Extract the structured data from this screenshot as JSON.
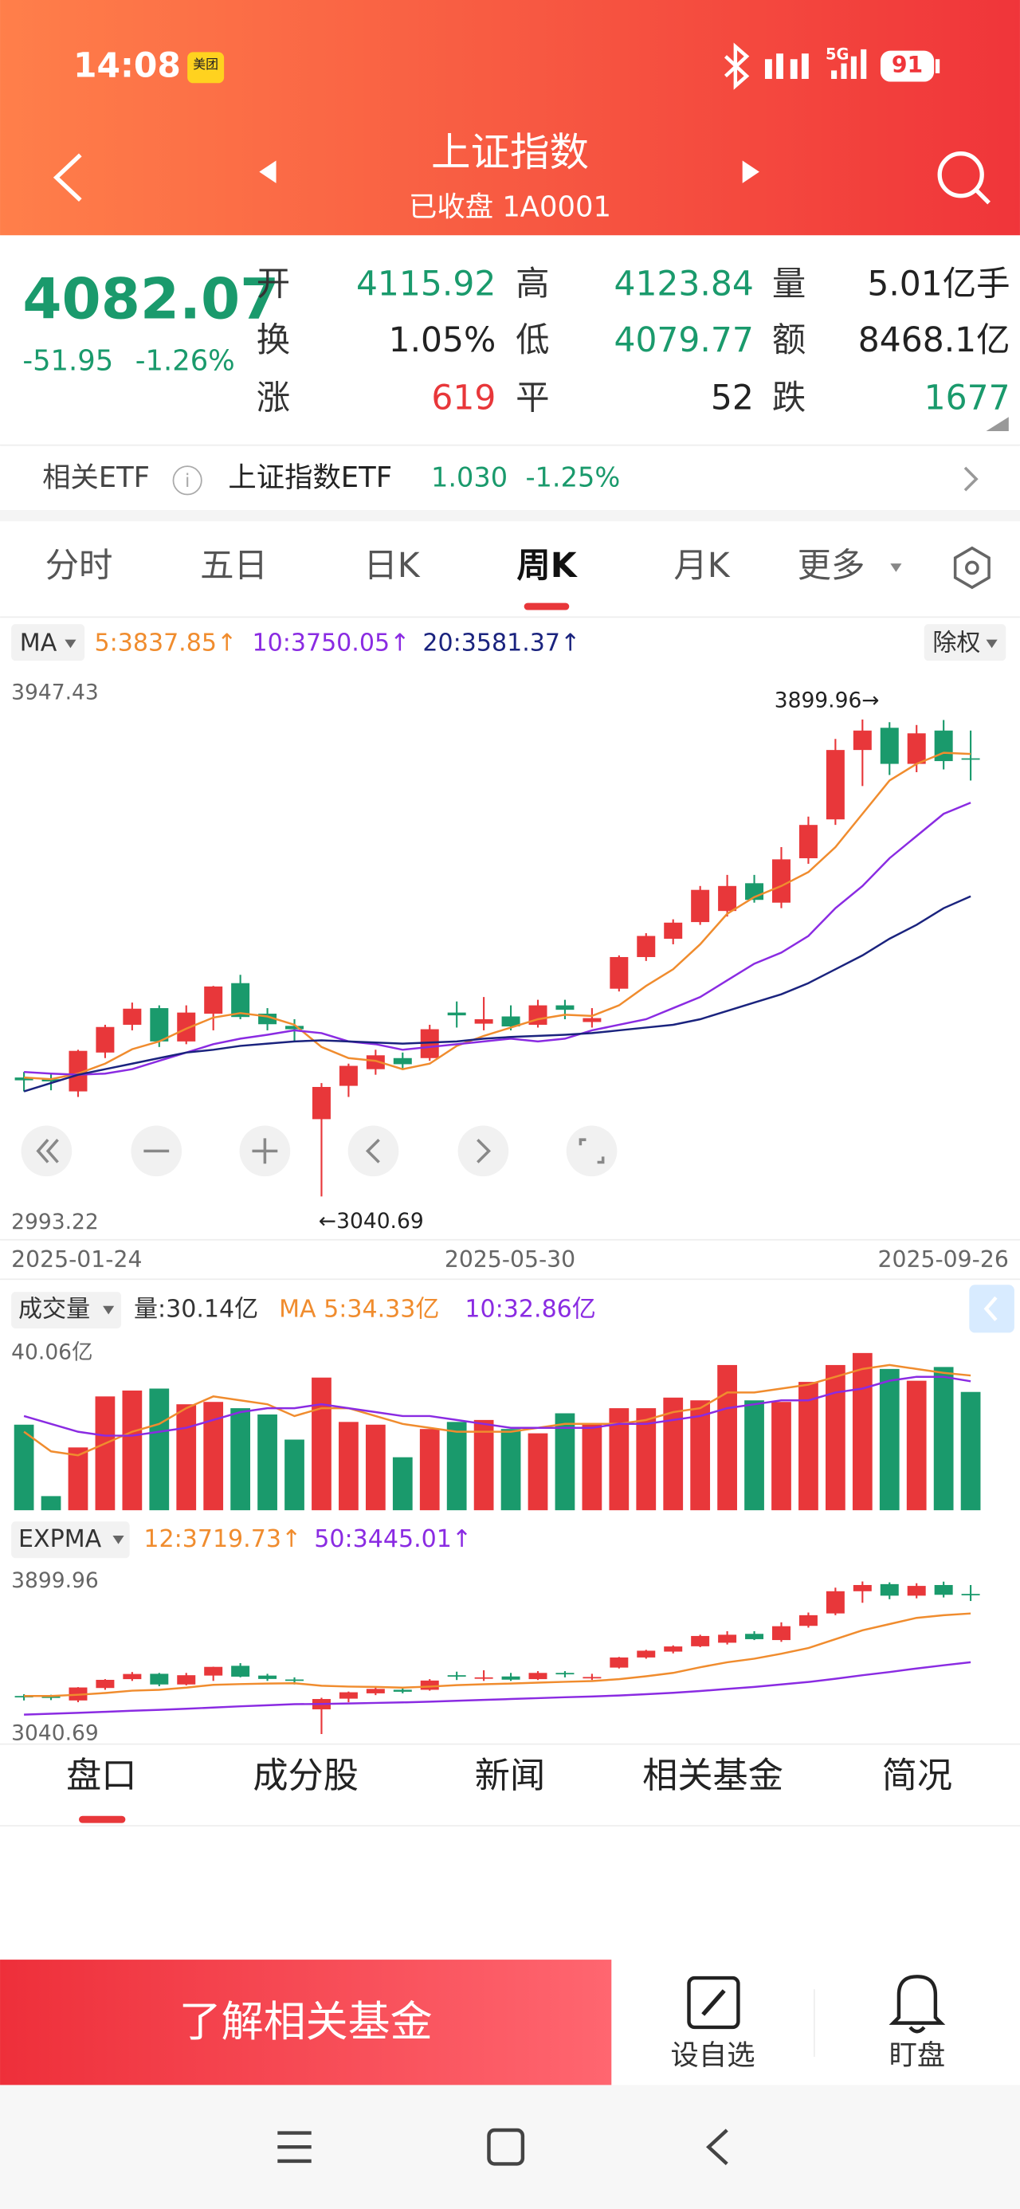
{
  "status_bar": {
    "time": "14:08",
    "app_badge": "美团",
    "network": "5G",
    "battery": "91"
  },
  "header": {
    "title": "上证指数",
    "subtitle": "已收盘 1A0001"
  },
  "quote": {
    "price": "4082.07",
    "change": "-51.95",
    "change_pct": "-1.26%",
    "color": "#1a9a6c",
    "stats": [
      [
        {
          "label": "开",
          "value": "4115.92",
          "color": "#1a9a6c"
        },
        {
          "label": "高",
          "value": "4123.84",
          "color": "#1a9a6c"
        },
        {
          "label": "量",
          "value": "5.01亿手",
          "color": "#222222"
        }
      ],
      [
        {
          "label": "换",
          "value": "1.05%",
          "color": "#222222"
        },
        {
          "label": "低",
          "value": "4079.77",
          "color": "#1a9a6c"
        },
        {
          "label": "额",
          "value": "8468.1亿",
          "color": "#222222"
        }
      ],
      [
        {
          "label": "涨",
          "value": "619",
          "color": "#e8373a"
        },
        {
          "label": "平",
          "value": "52",
          "color": "#222222"
        },
        {
          "label": "跌",
          "value": "1677",
          "color": "#1a9a6c"
        }
      ]
    ]
  },
  "etf": {
    "label": "相关ETF",
    "name": "上证指数ETF",
    "price": "1.030",
    "change_pct": "-1.25%",
    "color": "#1a9a6c"
  },
  "period_tabs": {
    "items": [
      "分时",
      "五日",
      "日K",
      "周K",
      "月K",
      "更多"
    ],
    "active": 3
  },
  "kline": {
    "type": "candlestick",
    "indicator": "MA",
    "adjust": "除权",
    "up_color": "#e8373a",
    "down_color": "#1a9a6c",
    "ylim": [
      2993.22,
      3947.43
    ],
    "yticks": [
      2993.22,
      3947.43
    ],
    "high_label": "3899.96→",
    "high_index": 31,
    "low_label": "←3040.69",
    "low_index": 11,
    "x_labels": [
      "2025-01-24",
      "2025-05-30",
      "2025-09-26"
    ],
    "open": [
      3255,
      3252,
      3230,
      3300,
      3350,
      3380,
      3320,
      3370,
      3425,
      3370,
      3348,
      3180,
      3240,
      3270,
      3290,
      3290,
      3372,
      3352,
      3365,
      3350,
      3385,
      3355,
      3415,
      3472,
      3505,
      3535,
      3555,
      3605,
      3570,
      3650,
      3720,
      3845,
      3885,
      3820,
      3880,
      3830
    ],
    "high": [
      3265,
      3262,
      3305,
      3350,
      3390,
      3385,
      3385,
      3420,
      3440,
      3380,
      3360,
      3245,
      3280,
      3305,
      3300,
      3350,
      3392,
      3400,
      3385,
      3395,
      3395,
      3380,
      3475,
      3515,
      3540,
      3600,
      3620,
      3620,
      3670,
      3725,
      3865,
      3899.96,
      3895,
      3890,
      3899,
      3880
    ],
    "low": [
      3230,
      3232,
      3220,
      3290,
      3340,
      3310,
      3315,
      3340,
      3360,
      3340,
      3320,
      3040.69,
      3220,
      3260,
      3270,
      3285,
      3345,
      3340,
      3340,
      3345,
      3360,
      3345,
      3410,
      3465,
      3495,
      3530,
      3545,
      3570,
      3560,
      3640,
      3710,
      3780,
      3800,
      3805,
      3810,
      3790
    ],
    "close": [
      3250,
      3248,
      3303,
      3346,
      3379,
      3320,
      3372,
      3419,
      3364,
      3351,
      3342,
      3238,
      3276,
      3295,
      3279,
      3342,
      3367,
      3360,
      3347,
      3385,
      3377,
      3362,
      3472,
      3510,
      3534,
      3593,
      3600,
      3575,
      3648,
      3710,
      3845,
      3880,
      3820,
      3875,
      3825,
      3828
    ],
    "series": [
      {
        "name": "5:3837.85↑",
        "color": "#f08c2e",
        "values": [
          3255,
          3252,
          3262,
          3280,
          3306,
          3320,
          3343,
          3363,
          3371,
          3365,
          3350,
          3310,
          3290,
          3285,
          3270,
          3280,
          3312,
          3330,
          3345,
          3360,
          3368,
          3366,
          3385,
          3420,
          3450,
          3495,
          3550,
          3580,
          3600,
          3625,
          3670,
          3730,
          3790,
          3820,
          3840,
          3837.85
        ]
      },
      {
        "name": "10:3750.05↑",
        "color": "#8a2be2",
        "values": [
          3265,
          3262,
          3260,
          3262,
          3270,
          3285,
          3300,
          3315,
          3325,
          3332,
          3340,
          3335,
          3320,
          3315,
          3305,
          3310,
          3315,
          3320,
          3325,
          3320,
          3325,
          3340,
          3350,
          3360,
          3380,
          3400,
          3430,
          3460,
          3480,
          3510,
          3560,
          3600,
          3650,
          3690,
          3730,
          3750.05
        ]
      },
      {
        "name": "20:3581.37↑",
        "color": "#1a237e",
        "values": [
          3230,
          3245,
          3260,
          3270,
          3280,
          3290,
          3300,
          3305,
          3312,
          3316,
          3320,
          3322,
          3320,
          3318,
          3316,
          3318,
          3320,
          3325,
          3328,
          3330,
          3332,
          3335,
          3340,
          3345,
          3350,
          3360,
          3375,
          3390,
          3405,
          3425,
          3450,
          3475,
          3505,
          3530,
          3560,
          3581.37
        ]
      }
    ]
  },
  "volume": {
    "name": "成交量",
    "last": "量:30.14亿",
    "ylim": [
      0,
      42
    ],
    "yticks": [
      {
        "value": 40.06,
        "label": "40.06亿"
      }
    ],
    "values": [
      21.8,
      3.6,
      16,
      29,
      30.5,
      31,
      27,
      27.6,
      26,
      24.4,
      18,
      33.8,
      22.5,
      21.8,
      13.5,
      20.7,
      22.5,
      23,
      20.7,
      19.6,
      24.7,
      21.8,
      26,
      26,
      28.7,
      28,
      37,
      28,
      27.6,
      32.7,
      37,
      40.06,
      36,
      33,
      36.5,
      30.14
    ],
    "series": [
      {
        "name": "MA 5:34.33亿",
        "color": "#f08c2e",
        "values": [
          20,
          15,
          14,
          17,
          20,
          22,
          26,
          29,
          28,
          27,
          24,
          26,
          26,
          24,
          22,
          21,
          20,
          20,
          20,
          21,
          22,
          22,
          22,
          23,
          25,
          26,
          30,
          30,
          31,
          32,
          34,
          36,
          37,
          36,
          35,
          34.33
        ]
      },
      {
        "name": "10:32.86亿",
        "color": "#8a2be2",
        "values": [
          24,
          22,
          20,
          19,
          19,
          20,
          21,
          23,
          25,
          26,
          26,
          27,
          26,
          25,
          24,
          24,
          23,
          22,
          21,
          21,
          21,
          21,
          22,
          22,
          23,
          24,
          26,
          27,
          28,
          28,
          30,
          31,
          33,
          34,
          34,
          32.86
        ]
      }
    ]
  },
  "expma": {
    "name": "EXPMA",
    "ylim": [
      3000,
      3960
    ],
    "yticks": [
      3040.69,
      3899.96
    ],
    "series": [
      {
        "name": "12:3719.73↑",
        "color": "#f08c2e",
        "values": [
          3255,
          3255,
          3262,
          3272,
          3285,
          3290,
          3302,
          3318,
          3322,
          3325,
          3327,
          3313,
          3308,
          3306,
          3302,
          3308,
          3316,
          3321,
          3325,
          3330,
          3335,
          3339,
          3350,
          3366,
          3385,
          3417,
          3445,
          3465,
          3493,
          3525,
          3575,
          3625,
          3660,
          3695,
          3710,
          3719.73
        ]
      },
      {
        "name": "50:3445.01↑",
        "color": "#8a2be2",
        "values": [
          3150,
          3155,
          3160,
          3166,
          3172,
          3177,
          3183,
          3190,
          3197,
          3203,
          3209,
          3210,
          3213,
          3216,
          3219,
          3223,
          3228,
          3233,
          3238,
          3243,
          3248,
          3252,
          3258,
          3265,
          3273,
          3283,
          3295,
          3306,
          3320,
          3334,
          3352,
          3372,
          3390,
          3410,
          3428,
          3445.01
        ]
      }
    ]
  },
  "bottom_tabs": {
    "items": [
      "盘口",
      "成分股",
      "新闻",
      "相关基金",
      "简况"
    ],
    "active": 0
  },
  "footer": {
    "cta": "了解相关基金",
    "actions": [
      "设自选",
      "盯盘"
    ]
  }
}
